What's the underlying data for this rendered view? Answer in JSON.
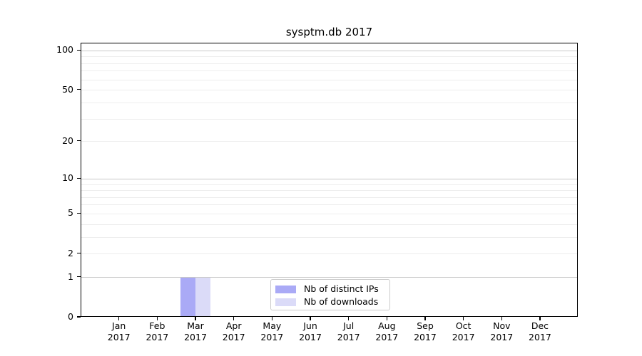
{
  "figure": {
    "background": "#ffffff"
  },
  "chart_data": {
    "type": "bar",
    "title": "sysptm.db 2017",
    "categories": [
      "Jan",
      "Feb",
      "Mar",
      "Apr",
      "May",
      "Jun",
      "Jul",
      "Aug",
      "Sep",
      "Oct",
      "Nov",
      "Dec"
    ],
    "year_label": "2017",
    "series": [
      {
        "name": "Nb of distinct IPs",
        "color": "#aaaaf6",
        "values": [
          0,
          0,
          1,
          0,
          0,
          0,
          0,
          0,
          0,
          0,
          0,
          0
        ]
      },
      {
        "name": "Nb of downloads",
        "color": "#dbdbf8",
        "values": [
          0,
          0,
          1,
          0,
          0,
          0,
          0,
          0,
          0,
          0,
          0,
          0
        ]
      }
    ],
    "y_axis": {
      "scale": "log1p",
      "tick_values": [
        0,
        1,
        2,
        5,
        10,
        20,
        50,
        100
      ],
      "top_value": 113
    },
    "grid": {
      "major_values": [
        1,
        10,
        100
      ],
      "minor_values": [
        2,
        3,
        4,
        5,
        6,
        7,
        8,
        9,
        20,
        30,
        40,
        50,
        60,
        70,
        80,
        90
      ],
      "major_color": "#c8c8c8",
      "minor_color": "#ededed"
    },
    "legend": {
      "location": "lower center"
    },
    "axis_color": "#000000"
  }
}
